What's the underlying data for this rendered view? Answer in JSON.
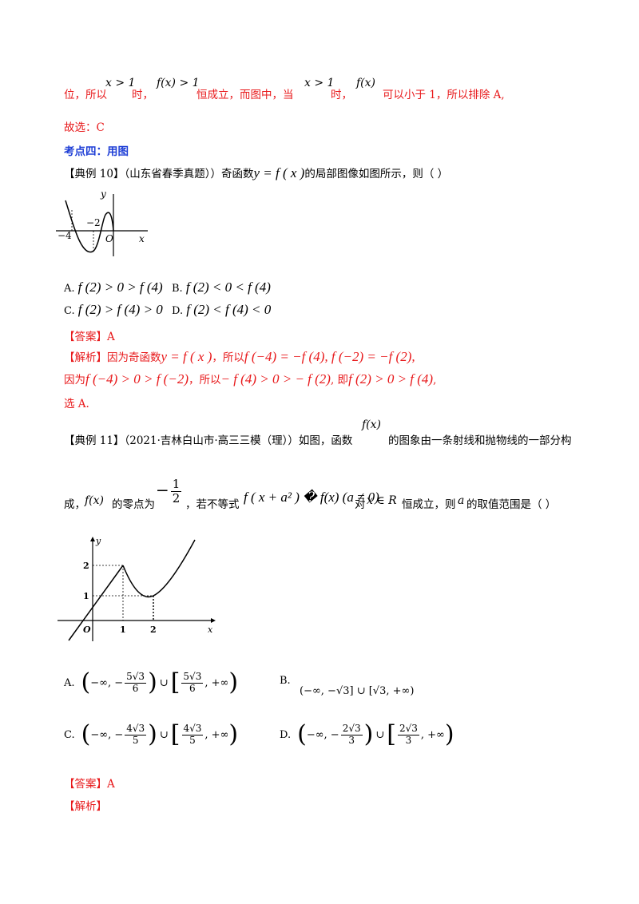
{
  "top": {
    "t1": "位，所以",
    "m1": "x > 1",
    "t2": "时，",
    "m2": "f(x) > 1",
    "t3": "恒成立，而图中，当",
    "m3": "x > 1",
    "t4": "时，",
    "m4": "f(x)",
    "t5": "可以小于 1，所以排除 A,"
  },
  "choice_line": "故选：C",
  "section_title": "考点四：用图",
  "ex10": {
    "tag": "【典例 10】",
    "source": "（山东省春季真题））",
    "text1": "奇函数",
    "math": "y = f ( x )",
    "text2": "的局部图像如图所示，则（      ）",
    "graph": {
      "y": "y",
      "x": "x",
      "o": "O",
      "m2": "−2",
      "m4": "−4"
    },
    "options": [
      {
        "label": "A.",
        "math": "f (2) > 0 > f (4)"
      },
      {
        "label": "B.",
        "math": "f (2) < 0 < f (4)"
      },
      {
        "label": "C.",
        "math": "f (2) > f (4) > 0"
      },
      {
        "label": "D.",
        "math": "f (2) < f (4) < 0"
      }
    ],
    "answer": "【答案】A",
    "analysis_tag": "【解析】",
    "analysis1_a": "因为奇函数",
    "analysis1_b": "y = f ( x )",
    "analysis1_c": "，所以",
    "analysis1_d": "f (−4) = −f (4), f (−2) = −f (2),",
    "analysis2_a": "因为",
    "analysis2_b": "f (−4) > 0 > f (−2)",
    "analysis2_c": "，所以",
    "analysis2_d": "− f (4) > 0 > − f (2)",
    "analysis2_e": ", 即",
    "analysis2_f": "f (2) > 0 > f (4)",
    "analysis2_g": ",",
    "analysis3": "选 A."
  },
  "ex11": {
    "tag": "【典例 11】",
    "source": "（2021·吉林白山市·高三三模（理））如图，函数",
    "fx": "f(x)",
    "text1": "的图象由一条射线和抛物线的一部分构",
    "line2_a": "成，",
    "line2_fx": "f(x)",
    "line2_b": "的零点为",
    "zero_sign": "−",
    "zero_num": "1",
    "zero_den": "2",
    "line2_c": "，若不等式",
    "ineq": "f ( x + a² ) � f(x) (a ≠ 0)",
    "line2_d": "对",
    "xR": "x ∈ R",
    "line2_e": "恒成立，则",
    "a": "a",
    "line2_f": "的取值范围是（      ）",
    "graph": {
      "y": "y",
      "x": "x",
      "o": "O",
      "t1": "1",
      "t2": "2",
      "v1": "1",
      "v2": "2"
    },
    "optA_label": "A.",
    "optA": {
      "l1": "−∞, −",
      "n1": "5√3",
      "d1": "6",
      "mid": "∪",
      "n2": "5√3",
      "d2": "6",
      "r": ", +∞"
    },
    "optB_label": "B.",
    "optB": "(−∞, −√3] ∪ [√3, +∞)",
    "optC_label": "C.",
    "optC": {
      "l1": "−∞, −",
      "n1": "4√3",
      "d1": "5",
      "mid": "∪",
      "n2": "4√3",
      "d2": "5",
      "r": ", +∞"
    },
    "optD_label": "D.",
    "optD": {
      "l1": "−∞, −",
      "n1": "2√3",
      "d1": "3",
      "mid": "∪",
      "n2": "2√3",
      "d2": "3",
      "r": ", +∞"
    },
    "answer": "【答案】A",
    "analysis_tag": "【解析】"
  }
}
